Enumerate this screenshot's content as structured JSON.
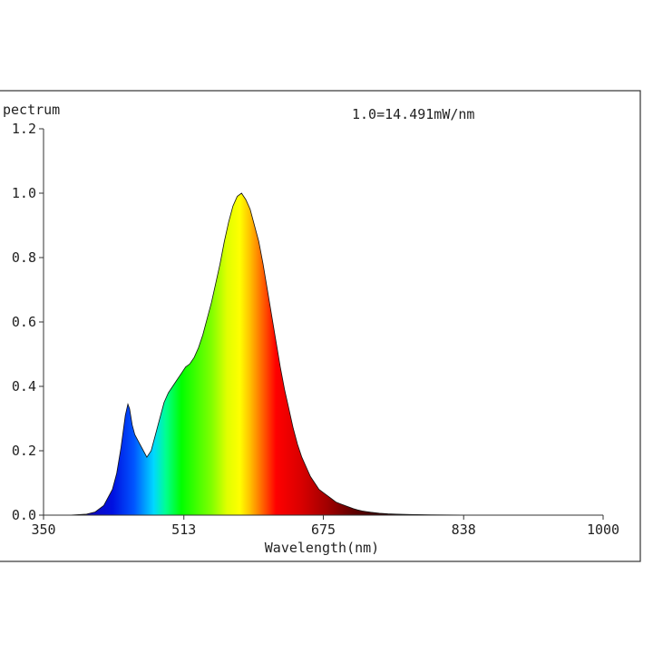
{
  "chart_data": {
    "type": "area",
    "title": "pectrum",
    "annotation": "1.0=14.491mW/nm",
    "xlabel": "Wavelength(nm)",
    "ylabel": "",
    "xlim": [
      350,
      1000
    ],
    "ylim": [
      0,
      1.2
    ],
    "x_ticks": [
      350,
      513,
      675,
      838,
      1000
    ],
    "x_tick_labels": [
      "350",
      "513",
      "675",
      "838",
      "1000"
    ],
    "y_ticks": [
      0.0,
      0.2,
      0.4,
      0.6,
      0.8,
      1.0,
      1.2
    ],
    "y_tick_labels": [
      "0.0",
      "0.2",
      "0.4",
      "0.6",
      "0.8",
      "1.0",
      "1.2"
    ],
    "grid": false,
    "fill": "spectral-gradient",
    "series": [
      {
        "x": [
          350,
          380,
          400,
          410,
          420,
          430,
          435,
          440,
          445,
          448,
          450,
          453,
          456,
          460,
          466,
          470,
          475,
          480,
          485,
          490,
          495,
          500,
          505,
          510,
          515,
          520,
          525,
          530,
          535,
          540,
          545,
          550,
          555,
          560,
          565,
          570,
          575,
          580,
          585,
          590,
          595,
          600,
          605,
          610,
          615,
          620,
          625,
          630,
          635,
          640,
          645,
          650,
          655,
          660,
          665,
          670,
          675,
          680,
          685,
          690,
          695,
          700,
          705,
          710,
          715,
          720,
          725,
          730,
          740,
          750,
          760,
          775,
          800,
          850,
          900,
          950,
          1000
        ],
        "y": [
          0.0,
          0.0,
          0.003,
          0.01,
          0.03,
          0.08,
          0.13,
          0.21,
          0.31,
          0.345,
          0.33,
          0.28,
          0.25,
          0.23,
          0.2,
          0.18,
          0.2,
          0.25,
          0.3,
          0.35,
          0.38,
          0.4,
          0.42,
          0.44,
          0.46,
          0.47,
          0.49,
          0.52,
          0.56,
          0.61,
          0.66,
          0.72,
          0.78,
          0.85,
          0.91,
          0.96,
          0.99,
          1.0,
          0.98,
          0.95,
          0.9,
          0.85,
          0.78,
          0.7,
          0.62,
          0.54,
          0.46,
          0.39,
          0.33,
          0.27,
          0.22,
          0.18,
          0.15,
          0.12,
          0.1,
          0.08,
          0.07,
          0.06,
          0.05,
          0.04,
          0.035,
          0.03,
          0.025,
          0.02,
          0.016,
          0.013,
          0.011,
          0.009,
          0.006,
          0.004,
          0.003,
          0.002,
          0.001,
          0.0,
          0.0,
          0.0,
          0.0
        ]
      }
    ]
  }
}
